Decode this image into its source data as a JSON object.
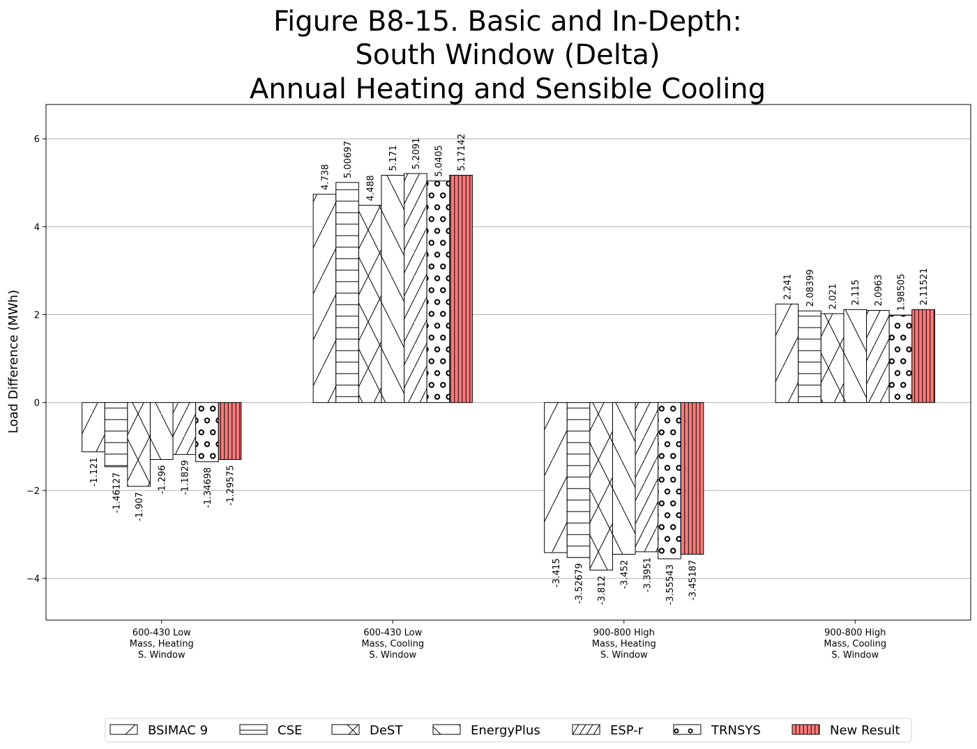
{
  "chart_data": {
    "type": "bar",
    "title_lines": [
      "Figure B8-15. Basic and In-Depth:",
      "South Window (Delta)",
      "Annual Heating and Sensible Cooling"
    ],
    "xlabel": "",
    "ylabel": "Load Difference (MWh)",
    "ylim": [
      -4.95,
      6.78
    ],
    "yticks": [
      -4,
      -2,
      0,
      2,
      4,
      6
    ],
    "ytick_labels": [
      "−4",
      "−2",
      "0",
      "2",
      "4",
      "6"
    ],
    "grid": "horizontal",
    "legend_position": "bottom",
    "categories": [
      [
        "600-430 Low",
        "Mass, Heating",
        "S. Window"
      ],
      [
        "600-430 Low",
        "Mass, Cooling",
        "S. Window"
      ],
      [
        "900-800 High",
        "Mass, Heating",
        "S. Window"
      ],
      [
        "900-800 High",
        "Mass, Cooling",
        "S. Window"
      ]
    ],
    "series": [
      {
        "name": "BSIMAC 9",
        "pattern": "slash",
        "color": "#ffffff",
        "values": [
          -1.121,
          4.738,
          -3.415,
          2.241
        ],
        "labels": [
          "-1.121",
          "4.738",
          "-3.415",
          "2.241"
        ]
      },
      {
        "name": "CSE",
        "pattern": "horizontal",
        "color": "#ffffff",
        "values": [
          -1.46127,
          5.00697,
          -3.52679,
          2.08399
        ],
        "labels": [
          "-1.46127",
          "5.00697",
          "-3.52679",
          "2.08399"
        ]
      },
      {
        "name": "DeST",
        "pattern": "cross",
        "color": "#ffffff",
        "values": [
          -1.907,
          4.488,
          -3.812,
          2.021
        ],
        "labels": [
          "-1.907",
          "4.488",
          "-3.812",
          "2.021"
        ]
      },
      {
        "name": "EnergyPlus",
        "pattern": "backslash",
        "color": "#ffffff",
        "values": [
          -1.296,
          5.171,
          -3.452,
          2.115
        ],
        "labels": [
          "-1.296",
          "5.171",
          "-3.452",
          "2.115"
        ]
      },
      {
        "name": "ESP-r",
        "pattern": "dense-slash",
        "color": "#ffffff",
        "values": [
          -1.1829,
          5.2091,
          -3.3951,
          2.0963
        ],
        "labels": [
          "-1.1829",
          "5.2091",
          "-3.3951",
          "2.0963"
        ]
      },
      {
        "name": "TRNSYS",
        "pattern": "circles",
        "color": "#ffffff",
        "values": [
          -1.34698,
          5.0405,
          -3.55543,
          1.98505
        ],
        "labels": [
          "-1.34698",
          "5.0405",
          "-3.55543",
          "1.98505"
        ]
      },
      {
        "name": "New Result",
        "pattern": "vertical",
        "color": "#ff7a7a",
        "values": [
          -1.29575,
          5.17142,
          -3.45187,
          2.11521
        ],
        "labels": [
          "-1.29575",
          "5.17142",
          "-3.45187",
          "2.11521"
        ]
      }
    ]
  }
}
